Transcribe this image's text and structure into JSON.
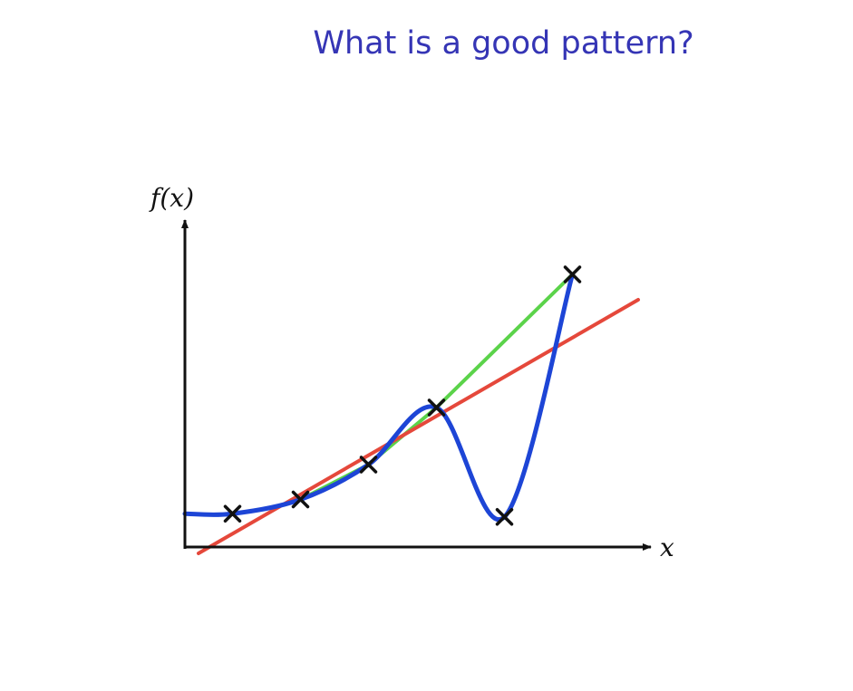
{
  "slide": {
    "title": "What is a good pattern?"
  },
  "colors": {
    "title": "#3535b5",
    "axis": "#111111",
    "points": "#111111",
    "linear_fit": "#e5483b",
    "interpolation": "#5bd34a",
    "overfit": "#1d45d6"
  },
  "chart_data": {
    "type": "line",
    "title": "",
    "xlabel": "x",
    "ylabel": "f(x)",
    "xlim": [
      0,
      10
    ],
    "ylim": [
      0,
      10
    ],
    "grid": false,
    "legend": "none",
    "points": [
      {
        "x": 1.05,
        "y": 1.05
      },
      {
        "x": 2.55,
        "y": 1.5
      },
      {
        "x": 4.05,
        "y": 2.6
      },
      {
        "x": 5.55,
        "y": 4.4
      },
      {
        "x": 7.05,
        "y": 0.95
      },
      {
        "x": 8.55,
        "y": 8.6
      }
    ],
    "series": [
      {
        "color": "#e5483b",
        "kind": "straight-line",
        "x": [
          0.3,
          10.0
        ],
        "y": [
          -0.2,
          7.8
        ]
      },
      {
        "color": "#5bd34a",
        "kind": "piecewise-linear",
        "x": [
          2.55,
          4.05,
          5.55,
          8.55
        ],
        "y": [
          1.5,
          2.6,
          4.4,
          8.6
        ]
      },
      {
        "color": "#1d45d6",
        "kind": "smooth-curve",
        "x": [
          0.0,
          1.05,
          2.55,
          4.05,
          5.55,
          7.05,
          8.55
        ],
        "y": [
          1.05,
          1.05,
          1.5,
          2.6,
          4.4,
          0.95,
          8.6
        ]
      }
    ]
  }
}
